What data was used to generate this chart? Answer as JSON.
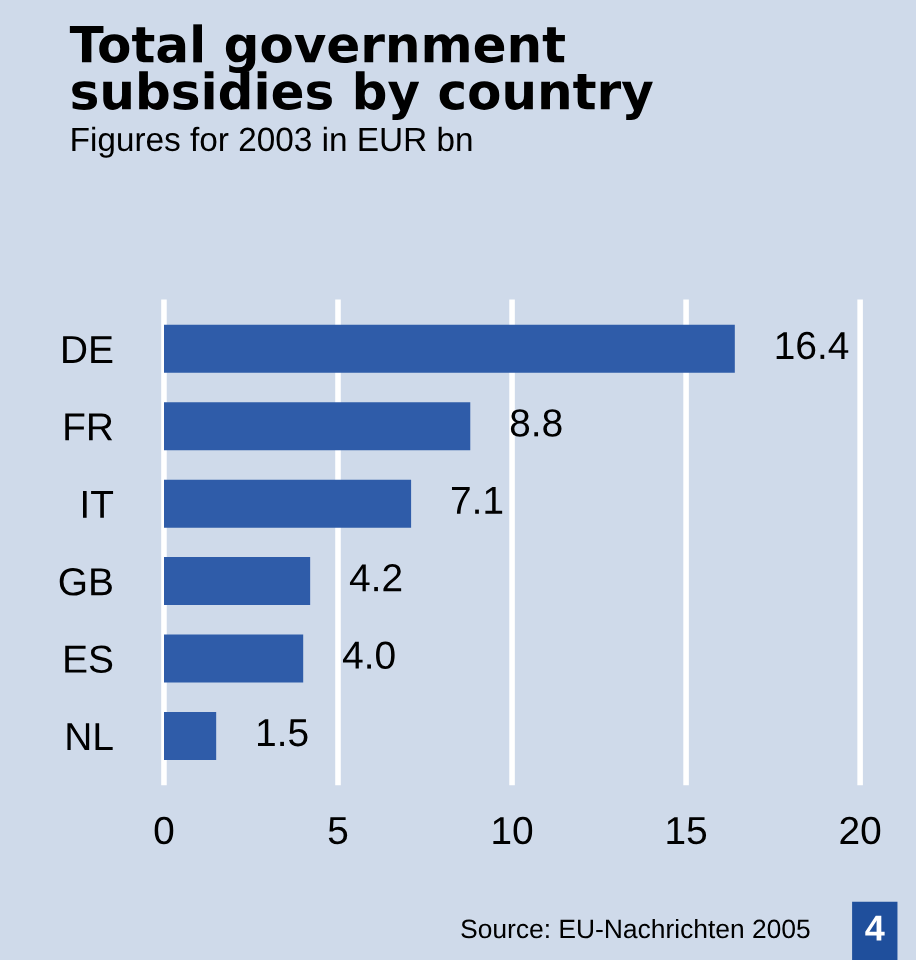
{
  "chart_data": {
    "type": "bar",
    "orientation": "horizontal",
    "title": "Total government\nsubsidies by country",
    "subtitle": "Figures for 2003 in EUR bn",
    "categories": [
      "DE",
      "FR",
      "IT",
      "GB",
      "ES",
      "NL"
    ],
    "values": [
      16.4,
      8.8,
      7.1,
      4.2,
      4.0,
      1.5
    ],
    "value_labels": [
      "16.4",
      "8.8",
      "7.1",
      "4.2",
      "4.0",
      "1.5"
    ],
    "color": "#2f5ca9",
    "xlim": [
      0,
      20
    ],
    "xticks": [
      0,
      5,
      10,
      15,
      20
    ],
    "grid": "x",
    "annotations": [
      "Source: EU-Nachrichten 2005",
      "4"
    ]
  }
}
